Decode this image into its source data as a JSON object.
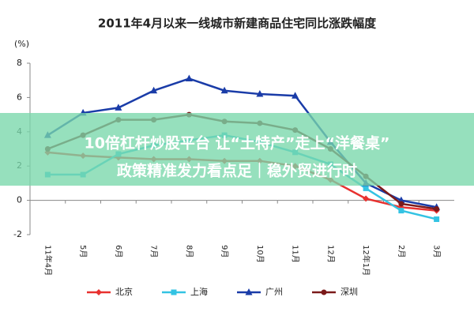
{
  "chart_data": {
    "type": "line",
    "title": "2011年4月以来一线城市新建商品住宅同比涨跌幅度",
    "y_label": "(%)",
    "categories": [
      "11年4月",
      "5月",
      "6月",
      "7月",
      "8月",
      "9月",
      "10月",
      "11月",
      "12月",
      "12年1月",
      "2月",
      "3月"
    ],
    "series": [
      {
        "name": "北京",
        "color": "#e8312f",
        "marker": "diamond",
        "values": [
          2.8,
          2.6,
          2.5,
          2.4,
          2.4,
          2.3,
          2.3,
          2.0,
          1.2,
          0.1,
          -0.4,
          -0.6
        ]
      },
      {
        "name": "上海",
        "color": "#33c3e3",
        "marker": "square",
        "values": [
          1.5,
          1.5,
          2.7,
          3.2,
          3.5,
          3.8,
          3.4,
          2.8,
          2.1,
          0.7,
          -0.6,
          -1.1
        ]
      },
      {
        "name": "广州",
        "color": "#1a3ca8",
        "marker": "triangle",
        "values": [
          3.8,
          5.1,
          5.4,
          6.4,
          7.1,
          6.4,
          6.2,
          6.1,
          3.4,
          1.0,
          0.0,
          -0.4
        ]
      },
      {
        "name": "深圳",
        "color": "#7b1a1a",
        "marker": "circle",
        "values": [
          3.0,
          3.8,
          4.7,
          4.7,
          5.0,
          4.6,
          4.5,
          4.1,
          3.0,
          1.4,
          -0.2,
          -0.5
        ]
      }
    ],
    "ylim": [
      -2,
      8
    ],
    "yticks": [
      -2,
      0,
      2,
      4,
      6,
      8
    ],
    "legend": "bottom"
  },
  "overlay": {
    "lines": [
      "10倍杠杆炒股平台 让“土特产”走上“洋餐桌”",
      "政策精准发力看点足｜稳外贸进行时"
    ]
  }
}
